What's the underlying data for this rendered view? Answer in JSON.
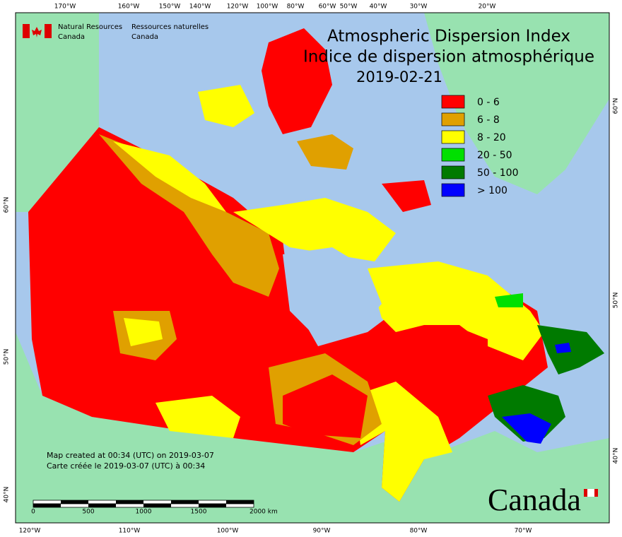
{
  "header": {
    "agency_en": [
      "Natural Resources",
      "Canada"
    ],
    "agency_fr": [
      "Ressources naturelles",
      "Canada"
    ],
    "title_en": "Atmospheric Dispersion Index",
    "title_fr": "Indice de dispersion atmosphérique",
    "date": "2019-02-21"
  },
  "legend": [
    {
      "label": "0 - 6",
      "color": "#ff0000"
    },
    {
      "label": "6 - 8",
      "color": "#e0a000"
    },
    {
      "label": "8 - 20",
      "color": "#ffff00"
    },
    {
      "label": "20 - 50",
      "color": "#00e000"
    },
    {
      "label": "50 - 100",
      "color": "#007a00"
    },
    {
      "label": "> 100",
      "color": "#0000ff"
    }
  ],
  "credits": [
    "Map created at 00:34 (UTC) on 2019-03-07",
    "Carte créée le 2019-03-07 (UTC) à 00:34"
  ],
  "scale": [
    "0",
    "500",
    "1000",
    "1500",
    "2000 km"
  ],
  "wordmark": "Canada",
  "graticule": {
    "top": [
      "170°W",
      "160°W",
      "150°W",
      "140°W",
      "120°W",
      "100°W",
      "80°W",
      "60°W",
      "50°W",
      "40°W",
      "30°W",
      "20°W"
    ],
    "bottom": [
      "120°W",
      "110°W",
      "100°W",
      "90°W",
      "80°W",
      "70°W"
    ],
    "left": [
      "60°N",
      "50°N",
      "40°N"
    ],
    "right": [
      "60°N",
      "50°N",
      "40°N"
    ]
  }
}
